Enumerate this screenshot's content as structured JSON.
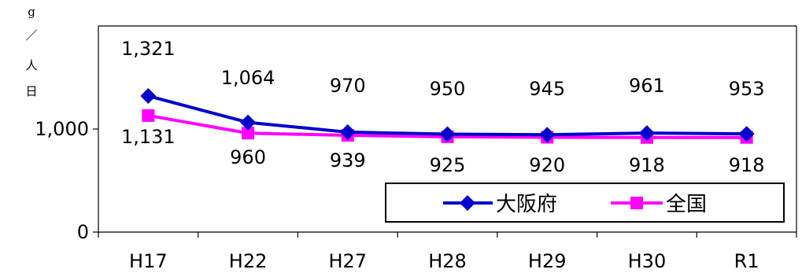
{
  "chart_data": {
    "type": "line",
    "categories": [
      "H17",
      "H22",
      "H27",
      "H28",
      "H29",
      "H30",
      "R1"
    ],
    "series": [
      {
        "name": "大阪府",
        "values": [
          1321,
          1064,
          970,
          950,
          945,
          961,
          953
        ],
        "color": "#0000cc",
        "marker": "diamond"
      },
      {
        "name": "全国",
        "values": [
          1131,
          960,
          939,
          925,
          920,
          918,
          918
        ],
        "color": "#ff00ff",
        "marker": "square"
      }
    ],
    "data_labels": {
      "大阪府": [
        "1,321",
        "1,064",
        "970",
        "950",
        "945",
        "961",
        "953"
      ],
      "全国": [
        "1,131",
        "960",
        "939",
        "925",
        "920",
        "918",
        "918"
      ]
    },
    "ylabel": [
      "g",
      "／",
      "人",
      "日"
    ],
    "yticks": [
      {
        "value": 0,
        "label": "0"
      },
      {
        "value": 1000,
        "label": "1,000"
      }
    ],
    "ylim": [
      0,
      2000
    ],
    "grid": false,
    "legend_position": "bottom-right"
  }
}
